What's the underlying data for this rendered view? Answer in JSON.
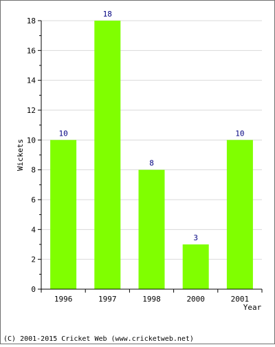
{
  "chart_data": {
    "type": "bar",
    "categories": [
      "1996",
      "1997",
      "1998",
      "2000",
      "2001"
    ],
    "values": [
      10,
      18,
      8,
      3,
      10
    ],
    "data_labels": [
      "10",
      "18",
      "8",
      "3",
      "10"
    ],
    "title": "",
    "xlabel": "Year",
    "ylabel": "Wickets",
    "ylim": [
      0,
      18
    ],
    "yticks": [
      "0",
      "2",
      "4",
      "6",
      "8",
      "10",
      "12",
      "14",
      "16",
      "18"
    ],
    "grid": true,
    "legend": "none",
    "colors": {
      "bar": "#80ff00",
      "data_label": "#000080",
      "grid": "#d9d9d9",
      "axis": "#000000",
      "border": "#6f6f6f"
    }
  },
  "footer": {
    "copyright": "(C) 2001-2015 Cricket Web (www.cricketweb.net)"
  }
}
